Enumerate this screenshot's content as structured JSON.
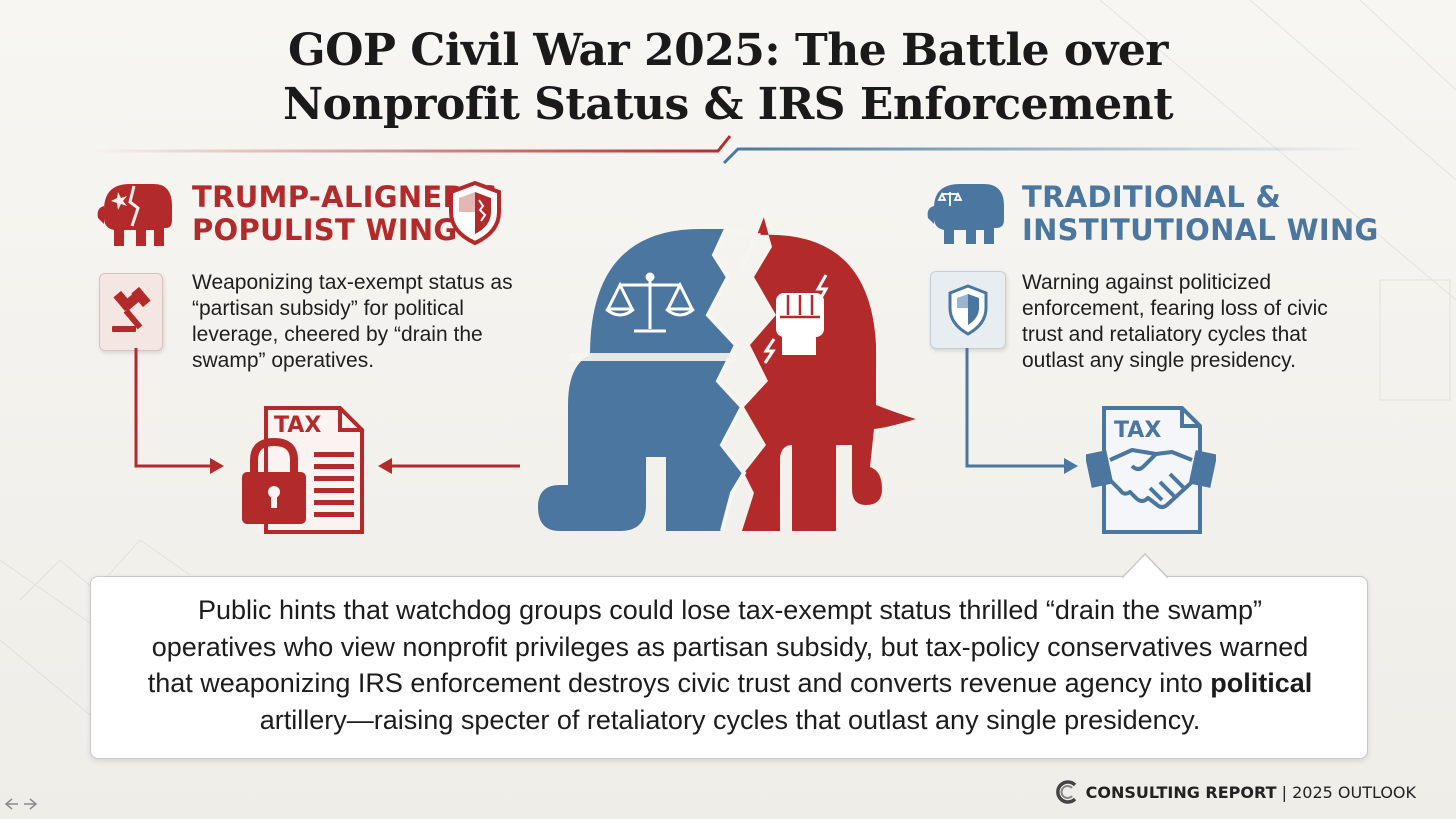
{
  "title_line1": "GOP Civil War 2025: The Battle over",
  "title_line2": "Nonprofit Status & IRS Enforcement",
  "left_wing": {
    "title_line1": "TRUMP-ALIGNED &",
    "title_line2": "POPULIST WING",
    "description_lines": [
      "Weaponizing tax-exempt status as",
      "“partisan subsidy” for political",
      "leverage, cheered by “drain the",
      "swamp” operatives."
    ],
    "doc_label": "TAX",
    "color": "#b32a2a"
  },
  "right_wing": {
    "title_line1": "TRADITIONAL &",
    "title_line2": "INSTITUTIONAL WING",
    "description_lines": [
      "Warning against politicized",
      "enforcement, fearing loss of civic",
      "trust and retaliatory cycles that",
      "outlast any single presidency."
    ],
    "doc_label": "TAX",
    "color": "#4a76a0"
  },
  "summary": {
    "line1": "Public hints that watchdog groups could lose tax-exempt status thrilled “drain the swamp”",
    "line2": "operatives who view nonprofit privileges as partisan subsidy, but tax-policy conservatives warned",
    "line3_pre": "that weaponizing IRS enforcement destroys civic trust and converts revenue agency into ",
    "line3_bold": "political",
    "line4": "artillery—raising specter of retaliatory cycles that outlast any single presidency."
  },
  "footer": {
    "brand": "CONSULTING REPORT",
    "separator": "|",
    "edition": "2025 OUTLOOK"
  },
  "icons": {
    "left_elephant": "cracked-elephant-icon",
    "left_badge": "shield-badge-icon",
    "left_box": "gavel-icon",
    "left_doc": "locked-tax-document-icon",
    "center": "split-elephant-icon",
    "center_left_symbol": "scales-of-justice-icon",
    "center_right_symbol": "raised-fist-icon",
    "right_elephant": "elephant-scales-icon",
    "right_box": "shield-icon",
    "right_doc": "handshake-tax-document-icon",
    "footer_logo": "c-logo-icon",
    "nav": "prev-next-arrows-icon"
  }
}
